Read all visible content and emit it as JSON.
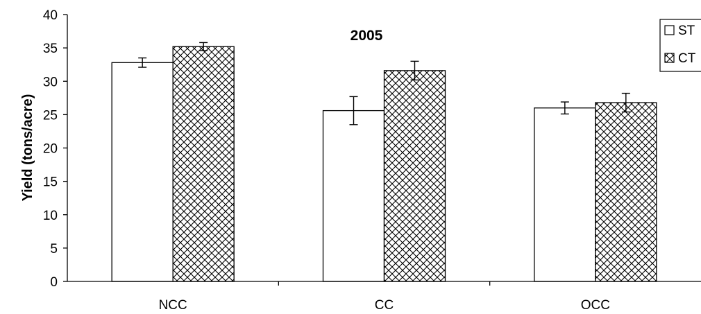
{
  "chart_data": {
    "type": "bar",
    "title": "2005",
    "xlabel": "",
    "ylabel": "Yield (tons/acre)",
    "ylim": [
      0,
      40
    ],
    "yticks": [
      0,
      5,
      10,
      15,
      20,
      25,
      30,
      35,
      40
    ],
    "categories": [
      "NCC",
      "CC",
      "OCC"
    ],
    "series": [
      {
        "name": "ST",
        "values": [
          32.8,
          25.6,
          26.0
        ],
        "errors": [
          0.7,
          2.1,
          0.9
        ],
        "fill": "#ffffff",
        "pattern": "none"
      },
      {
        "name": "CT",
        "values": [
          35.2,
          31.6,
          26.8
        ],
        "errors": [
          0.6,
          1.4,
          1.4
        ],
        "fill": "#ffffff",
        "pattern": "crosshatch"
      }
    ],
    "legend_position": "top-right",
    "grid": false
  }
}
